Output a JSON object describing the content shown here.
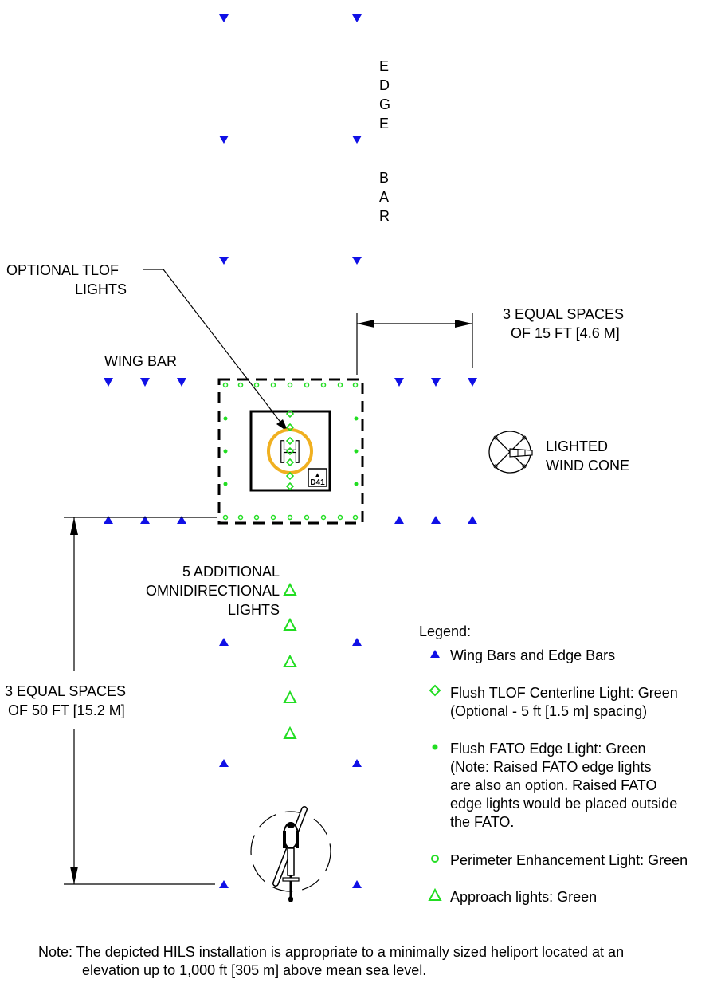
{
  "colors": {
    "blue_light": "#1010e6",
    "green_light": "#22dd22",
    "tlof_ring": "#f0b020",
    "ink": "#000000"
  },
  "labels": {
    "edge_bar_letters": [
      "E",
      "D",
      "G",
      "E",
      "B",
      "A",
      "R"
    ],
    "optional_tlof_line1": "OPTIONAL TLOF",
    "optional_tlof_line2": "LIGHTS",
    "wing_bar": "WING BAR",
    "spaces15_line1": "3 EQUAL SPACES",
    "spaces15_line2": "OF 15 FT [4.6 M]",
    "wind_cone_line1": "LIGHTED",
    "wind_cone_line2": "WIND CONE",
    "additional_line1": "5 ADDITIONAL",
    "additional_line2": "OMNIDIRECTIONAL",
    "additional_line3": "LIGHTS",
    "spaces50_line1": "3 EQUAL SPACES",
    "spaces50_line2": "OF 50 FT [15.2 M]",
    "tlof_marking": "H",
    "weight_box_line1": "▲",
    "weight_box_line2": "D41"
  },
  "legend": {
    "title": "Legend:",
    "items": [
      {
        "symbol": "blue-triangle-icon",
        "lines": [
          "Wing Bars and Edge Bars"
        ]
      },
      {
        "symbol": "green-diamond-icon",
        "lines": [
          "Flush TLOF Centerline Light: Green",
          "(Optional - 5 ft [1.5 m] spacing)"
        ]
      },
      {
        "symbol": "green-dot-icon",
        "lines": [
          "Flush FATO Edge Light: Green",
          "(Note: Raised FATO edge lights",
          "are also an option. Raised FATO",
          "edge lights would be placed outside",
          "the FATO."
        ]
      },
      {
        "symbol": "green-circle-icon",
        "lines": [
          "Perimeter Enhancement Light: Green"
        ]
      },
      {
        "symbol": "green-open-triangle-icon",
        "lines": [
          "Approach lights: Green"
        ]
      }
    ]
  },
  "note": {
    "line1": "Note: The depicted HILS installation is appropriate to a minimally sized heliport located at an",
    "line2": "elevation up to 1,000 ft [305 m] above mean sea level."
  }
}
